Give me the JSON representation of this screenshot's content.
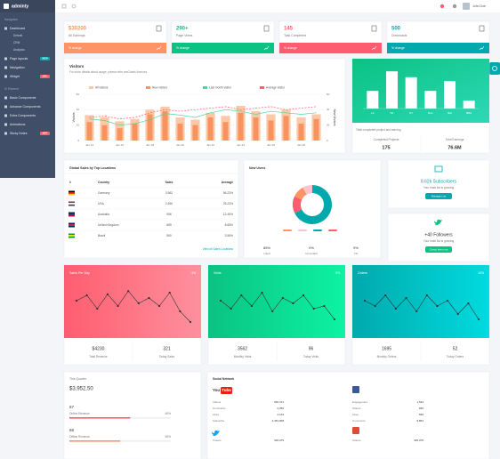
{
  "header": {
    "brand": "adminty",
    "user": "John Doe"
  },
  "sidebar": {
    "groups": [
      {
        "heading": "Navigation",
        "items": [
          {
            "label": "Dashboard",
            "children": [
              "Default",
              "CRM",
              "Analytics"
            ]
          },
          {
            "label": "Page layouts",
            "badge": "NEW",
            "badge_color": "#01a9ac"
          },
          {
            "label": "Navigation"
          },
          {
            "label": "Widget",
            "badge": "100+",
            "badge_color": "#fe5d70"
          }
        ]
      },
      {
        "heading": "UI Element",
        "items": [
          {
            "label": "Basic Components"
          },
          {
            "label": "Advance Components"
          },
          {
            "label": "Extra Components"
          },
          {
            "label": "Animations"
          },
          {
            "label": "Sticky Notes",
            "badge": "HOT",
            "badge_color": "#fe5d70"
          }
        ]
      }
    ]
  },
  "stats": [
    {
      "value": "$30200",
      "label": "All Earnings",
      "footer": "% change",
      "color": "#fe9365"
    },
    {
      "value": "290+",
      "label": "Page Views",
      "footer": "% change",
      "color": "#0ac282"
    },
    {
      "value": "145",
      "label": "Task Completed",
      "footer": "% change",
      "color": "#fe5d70"
    },
    {
      "value": "500",
      "label": "Downloads",
      "footer": "% change",
      "color": "#01a9ac"
    }
  ],
  "visitors_chart": {
    "type": "bar",
    "title": "Visitors",
    "subtitle": "For more details about usage, please refer amCharts licences.",
    "y_label": "Visitors",
    "y2_label": "New Visitors",
    "categories": [
      "Jan 14",
      null,
      "Jan 16",
      null,
      "Jan 18",
      null,
      "Jan 20",
      null,
      "Jan 22",
      null,
      "Jan 24",
      null,
      "Jan 26",
      null,
      "Jan 28",
      null
    ],
    "series": [
      {
        "name": "All visitors",
        "type": "bar",
        "color": "#fdc8a8",
        "values": [
          33,
          30,
          25,
          28,
          40,
          44,
          30,
          27,
          36,
          32,
          45,
          38,
          34,
          40,
          30,
          34
        ]
      },
      {
        "name": "New visitors",
        "type": "bar",
        "color": "#f8925e",
        "values": [
          24,
          20,
          16,
          22,
          34,
          38,
          22,
          20,
          30,
          24,
          36,
          30,
          26,
          32,
          22,
          28
        ]
      },
      {
        "name": "Last month visitor",
        "type": "line",
        "axis": "y2",
        "color": "#4cd5a1",
        "values": [
          28,
          26,
          20,
          22,
          27,
          35,
          33,
          30,
          36,
          40,
          38,
          34,
          38,
          36,
          34,
          36
        ]
      },
      {
        "name": "Average visitor",
        "type": "line",
        "axis": "y2",
        "dashed": true,
        "color": "#fe5d70",
        "values": [
          30,
          32,
          28,
          30,
          36,
          40,
          38,
          40,
          42,
          44,
          40,
          42,
          44,
          40,
          42,
          44
        ]
      }
    ],
    "ylim": [
      0,
      60
    ],
    "yticks": [
      0,
      20,
      40,
      60
    ],
    "y2lim": [
      0,
      60
    ],
    "y2ticks": [
      0,
      20,
      40,
      60
    ],
    "grid": true
  },
  "projects_chart": {
    "type": "bar",
    "categories": [
      "LA",
      "SF",
      "NY",
      "Ros",
      "Bat",
      "BRA"
    ],
    "values": [
      45,
      95,
      80,
      45,
      70,
      20
    ],
    "ylim": [
      0,
      100
    ],
    "color": "#ffffff",
    "caption": "Total completed project and earning",
    "completed_label": "Completed Projects",
    "completed": "175",
    "earnings_label": "Total Earnings",
    "earnings": "76.6M"
  },
  "sales_table": {
    "title": "Global Sales by Top Locations",
    "columns": [
      "#",
      "Country",
      "Sales",
      "Average"
    ],
    "rows": [
      [
        "Germany",
        "3,562",
        "56.23%"
      ],
      [
        "USA",
        "2,650",
        "25.23%"
      ],
      [
        "Australia",
        "956",
        "12.45%"
      ],
      [
        "United Kingdom",
        "689",
        "8.65%"
      ],
      [
        "Brazil",
        "560",
        "3.56%"
      ]
    ],
    "link": "View all Sales Locations"
  },
  "new_users": {
    "title": "New Users",
    "type": "pie",
    "values": [
      68,
      14,
      10,
      8
    ],
    "colors": [
      "#01a9ac",
      "#fe5d70",
      "#fe9365",
      "#fec3cb"
    ],
    "stats": [
      {
        "value": "85%",
        "label": "Liked"
      },
      {
        "value": "0%",
        "label": "Unverified"
      },
      {
        "value": "9%",
        "label": "Fill"
      }
    ]
  },
  "subscribers": {
    "value": "8.62k Subscribers",
    "text": "Your main list is growing",
    "button": "Manage List"
  },
  "followers": {
    "value": "+40 Followers",
    "text": "Your main list is growing",
    "button": "Check them out"
  },
  "mini_charts": [
    {
      "type": "line",
      "title": "Sales Per Day",
      "change": "3%",
      "colors": [
        "#fe5d70",
        "#fe909d"
      ],
      "values": [
        60,
        70,
        45,
        72,
        50,
        78,
        55,
        65,
        50,
        75,
        40,
        20
      ],
      "ylim": [
        0,
        100
      ],
      "footer": [
        {
          "value": "$4230",
          "label": "Total Revenue"
        },
        {
          "value": "321",
          "label": "Today Sales"
        }
      ]
    },
    {
      "type": "line",
      "title": "Visits",
      "change": "9%",
      "colors": [
        "#0ac282",
        "#0df3a3"
      ],
      "values": [
        60,
        45,
        70,
        50,
        75,
        40,
        65,
        55,
        70,
        45,
        50,
        25
      ],
      "ylim": [
        0,
        100
      ],
      "footer": [
        {
          "value": "3562",
          "label": "Monthly Visits"
        },
        {
          "value": "96",
          "label": "Today Visits"
        }
      ]
    },
    {
      "type": "line",
      "title": "Orders",
      "change": "10%",
      "colors": [
        "#01a9ac",
        "#01dbdf"
      ],
      "values": [
        60,
        50,
        70,
        45,
        65,
        40,
        70,
        50,
        60,
        35,
        55,
        25
      ],
      "ylim": [
        0,
        100
      ],
      "footer": [
        {
          "value": "1695",
          "label": "Monthly Orders"
        },
        {
          "value": "52",
          "label": "Today Orders"
        }
      ]
    }
  ],
  "quarter": {
    "title": "This Quarter",
    "amount": "$3,952.50",
    "rows": [
      {
        "value": "67",
        "label": "Online Revenue",
        "color": "#fe5d70"
      },
      {
        "value": "68",
        "label": "Offline Revenue",
        "color": "#fe9365"
      }
    ],
    "progress": {
      "values": [
        60,
        50
      ],
      "value_labels": [
        "60%",
        "50%"
      ],
      "xlim": [
        0,
        100
      ]
    }
  },
  "social": {
    "title": "Social Network",
    "youtube_logo": [
      "You",
      "Tube"
    ],
    "youtube": [
      [
        "Videos",
        "545,721"
      ],
      [
        "Comments",
        "2,256"
      ],
      [
        "Likes",
        "4,129"
      ],
      [
        "Subscribe",
        "3,451,908"
      ]
    ],
    "twitter": [
      [
        "Tweets",
        "325,075"
      ]
    ],
    "facebook": [
      [
        "Engagement",
        "1,543"
      ],
      [
        "Shares",
        "846"
      ],
      [
        "Likes",
        "569"
      ],
      [
        "Comments",
        "9,864"
      ]
    ],
    "google": [
      [
        "Shares",
        "325,075"
      ]
    ]
  }
}
